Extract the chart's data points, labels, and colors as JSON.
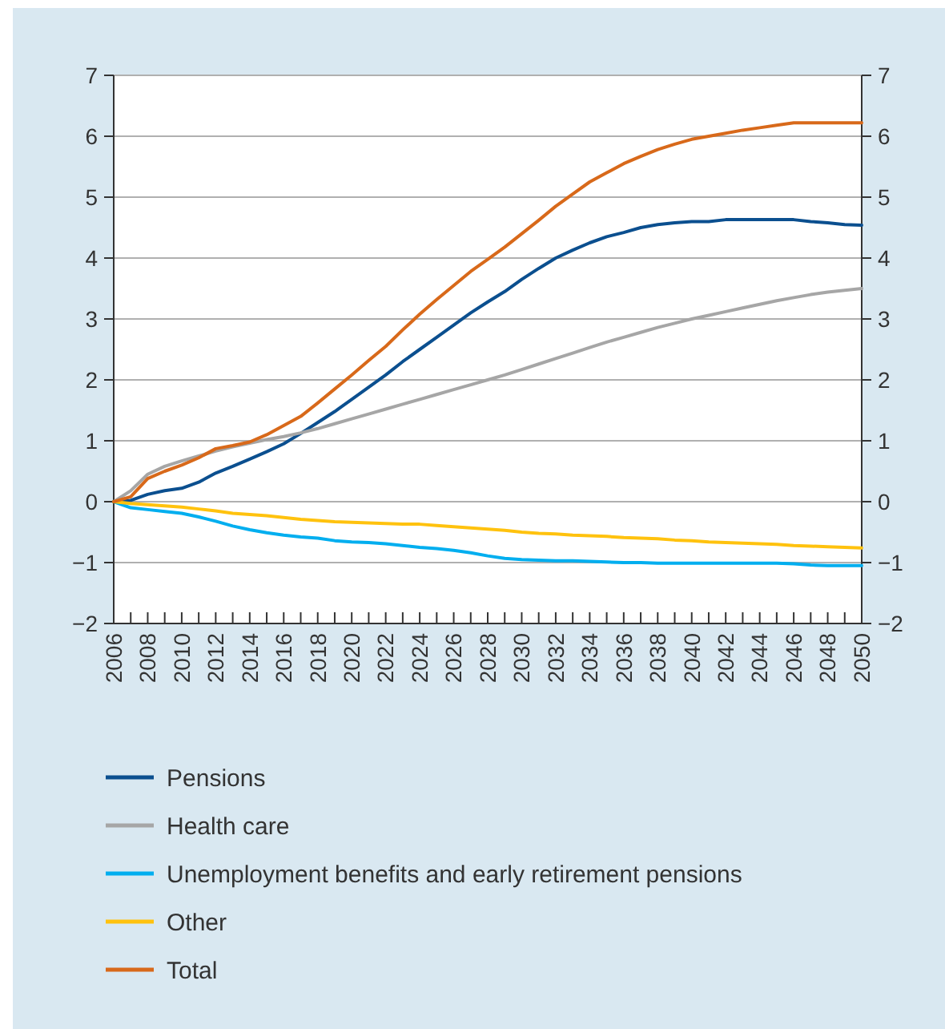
{
  "chart_data": {
    "type": "line",
    "x": [
      2006,
      2007,
      2008,
      2009,
      2010,
      2011,
      2012,
      2013,
      2014,
      2015,
      2016,
      2017,
      2018,
      2019,
      2020,
      2021,
      2022,
      2023,
      2024,
      2025,
      2026,
      2027,
      2028,
      2029,
      2030,
      2031,
      2032,
      2033,
      2034,
      2035,
      2036,
      2037,
      2038,
      2039,
      2040,
      2041,
      2042,
      2043,
      2044,
      2045,
      2046,
      2047,
      2048,
      2049,
      2050
    ],
    "series": [
      {
        "name": "Pensions",
        "color": "#0b4f8f",
        "values": [
          0,
          0.02,
          0.12,
          0.18,
          0.22,
          0.32,
          0.47,
          0.58,
          0.7,
          0.82,
          0.95,
          1.12,
          1.3,
          1.48,
          1.68,
          1.88,
          2.08,
          2.3,
          2.5,
          2.7,
          2.9,
          3.1,
          3.28,
          3.45,
          3.65,
          3.83,
          4.0,
          4.13,
          4.25,
          4.35,
          4.42,
          4.5,
          4.55,
          4.58,
          4.6,
          4.6,
          4.63,
          4.63,
          4.63,
          4.63,
          4.63,
          4.6,
          4.58,
          4.55,
          4.54
        ]
      },
      {
        "name": "Health care",
        "color": "#a6a6a6",
        "values": [
          0,
          0.18,
          0.45,
          0.58,
          0.67,
          0.75,
          0.83,
          0.9,
          0.96,
          1.02,
          1.07,
          1.13,
          1.2,
          1.28,
          1.36,
          1.44,
          1.52,
          1.6,
          1.68,
          1.76,
          1.84,
          1.92,
          2.0,
          2.08,
          2.17,
          2.26,
          2.35,
          2.44,
          2.53,
          2.62,
          2.7,
          2.78,
          2.86,
          2.93,
          3.0,
          3.06,
          3.12,
          3.18,
          3.24,
          3.3,
          3.35,
          3.4,
          3.44,
          3.47,
          3.5
        ]
      },
      {
        "name": "Unemployment benefits and early retirement pensions",
        "color": "#00aeef",
        "values": [
          0,
          -0.1,
          -0.13,
          -0.16,
          -0.19,
          -0.25,
          -0.32,
          -0.4,
          -0.46,
          -0.51,
          -0.55,
          -0.58,
          -0.6,
          -0.64,
          -0.66,
          -0.67,
          -0.69,
          -0.72,
          -0.75,
          -0.77,
          -0.8,
          -0.84,
          -0.89,
          -0.93,
          -0.95,
          -0.96,
          -0.97,
          -0.97,
          -0.98,
          -0.99,
          -1.0,
          -1.0,
          -1.01,
          -1.01,
          -1.01,
          -1.01,
          -1.01,
          -1.01,
          -1.01,
          -1.01,
          -1.02,
          -1.04,
          -1.05,
          -1.05,
          -1.05
        ]
      },
      {
        "name": "Other",
        "color": "#ffc20e",
        "values": [
          0,
          -0.03,
          -0.05,
          -0.07,
          -0.09,
          -0.12,
          -0.15,
          -0.19,
          -0.21,
          -0.23,
          -0.26,
          -0.29,
          -0.31,
          -0.33,
          -0.34,
          -0.35,
          -0.36,
          -0.37,
          -0.37,
          -0.39,
          -0.41,
          -0.43,
          -0.45,
          -0.47,
          -0.5,
          -0.52,
          -0.53,
          -0.55,
          -0.56,
          -0.57,
          -0.59,
          -0.6,
          -0.61,
          -0.63,
          -0.64,
          -0.66,
          -0.67,
          -0.68,
          -0.69,
          -0.7,
          -0.72,
          -0.73,
          -0.74,
          -0.75,
          -0.76
        ]
      },
      {
        "name": "Total",
        "color": "#d8691a",
        "values": [
          0,
          0.08,
          0.38,
          0.5,
          0.6,
          0.72,
          0.87,
          0.92,
          0.98,
          1.1,
          1.25,
          1.4,
          1.62,
          1.85,
          2.08,
          2.32,
          2.55,
          2.82,
          3.08,
          3.32,
          3.55,
          3.78,
          3.98,
          4.18,
          4.4,
          4.62,
          4.85,
          5.05,
          5.25,
          5.4,
          5.55,
          5.67,
          5.78,
          5.87,
          5.95,
          6.0,
          6.05,
          6.1,
          6.14,
          6.18,
          6.22,
          6.22,
          6.22,
          6.22,
          6.22
        ]
      }
    ],
    "xlim": [
      2006,
      2050
    ],
    "xticks": [
      2006,
      {
        "value": 2007,
        "label": null
      },
      2008,
      {
        "value": 2009,
        "label": null
      },
      2010,
      {
        "value": 2011,
        "label": null
      },
      2012,
      {
        "value": 2013,
        "label": null
      },
      2014,
      {
        "value": 2015,
        "label": null
      },
      2016,
      {
        "value": 2017,
        "label": null
      },
      2018,
      {
        "value": 2019,
        "label": null
      },
      2020,
      {
        "value": 2021,
        "label": null
      },
      2022,
      {
        "value": 2023,
        "label": null
      },
      2024,
      {
        "value": 2025,
        "label": null
      },
      2026,
      {
        "value": 2027,
        "label": null
      },
      2028,
      {
        "value": 2029,
        "label": null
      },
      2030,
      {
        "value": 2031,
        "label": null
      },
      2032,
      {
        "value": 2033,
        "label": null
      },
      2034,
      {
        "value": 2035,
        "label": null
      },
      2036,
      {
        "value": 2037,
        "label": null
      },
      2038,
      {
        "value": 2039,
        "label": null
      },
      2040,
      {
        "value": 2041,
        "label": null
      },
      2042,
      {
        "value": 2043,
        "label": null
      },
      2044,
      {
        "value": 2045,
        "label": null
      },
      2046,
      {
        "value": 2047,
        "label": null
      },
      2048,
      {
        "value": 2049,
        "label": null
      },
      2050
    ],
    "ylim": [
      -2,
      7
    ],
    "yticks": [
      -2,
      -1,
      0,
      1,
      2,
      3,
      4,
      5,
      6,
      7
    ],
    "y2lim": [
      -2,
      7
    ],
    "y2ticks": [
      -2,
      -1,
      0,
      1,
      2,
      3,
      4,
      5,
      6,
      7
    ],
    "grid": "y",
    "legend": "bottom",
    "marker": "none",
    "line_style": "solid"
  }
}
